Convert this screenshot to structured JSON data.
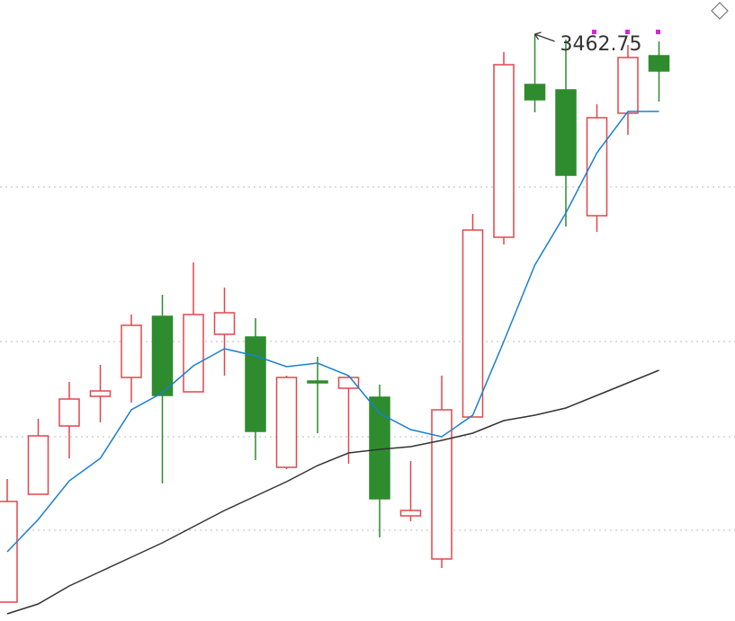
{
  "chart_data": {
    "type": "candlestick",
    "ylim": [
      3136.25,
      3481.75
    ],
    "grid_lines": [
      3377.75,
      3291.75,
      3238.75,
      3186.75
    ],
    "up_color": "#e0474c",
    "down_color": "#2e8b2e",
    "open": [
      3146.75,
      3206.75,
      3244.75,
      3261.25,
      3271.75,
      3305.75,
      3263.75,
      3295.75,
      3294.25,
      3221.75,
      3269.75,
      3265.75,
      3260.75,
      3194.75,
      3170.75,
      3249.75,
      3349.75,
      3434.75,
      3431.75,
      3361.75,
      3418.75,
      3450.75
    ],
    "high": [
      3215.25,
      3248.75,
      3269.25,
      3278.75,
      3306.75,
      3317.75,
      3335.75,
      3321.75,
      3304.75,
      3272.75,
      3283.25,
      3272.75,
      3267.75,
      3225.25,
      3272.75,
      3362.75,
      3452.75,
      3462.75,
      3459.75,
      3423.75,
      3456.75,
      3458.75
    ],
    "low": [
      3146.75,
      3206.75,
      3226.75,
      3246.75,
      3257.75,
      3212.75,
      3263.75,
      3272.75,
      3225.75,
      3220.75,
      3240.75,
      3223.75,
      3182.75,
      3191.75,
      3165.75,
      3249.75,
      3345.75,
      3419.25,
      3355.75,
      3352.75,
      3406.75,
      3425.25
    ],
    "close": [
      3202.75,
      3239.25,
      3259.75,
      3264.25,
      3300.75,
      3261.75,
      3306.75,
      3307.75,
      3241.75,
      3271.75,
      3268.75,
      3271.75,
      3204.25,
      3197.75,
      3253.75,
      3353.75,
      3445.75,
      3426.25,
      3384.25,
      3416.25,
      3449.75,
      3442.25
    ],
    "lines": [
      {
        "color": "#1a7fd0",
        "values": [
          3174.75,
          3192.75,
          3214.25,
          3226.75,
          3253.75,
          3263.25,
          3278.25,
          3287.75,
          3283.75,
          3277.75,
          3279.75,
          3272.75,
          3251.75,
          3242.75,
          3238.75,
          3250.75,
          3291.75,
          3334.25,
          3363.25,
          3396.75,
          3419.75,
          3419.75
        ]
      },
      {
        "color": "#333333",
        "values": [
          3140.25,
          3145.75,
          3155.75,
          3163.75,
          3171.75,
          3179.75,
          3188.75,
          3197.75,
          3205.75,
          3213.75,
          3222.75,
          3229.75,
          3231.75,
          3233.25,
          3236.75,
          3240.75,
          3247.75,
          3250.75,
          3254.75,
          3261.75,
          3268.75,
          3275.75
        ]
      }
    ],
    "annotation": {
      "value": 3462.75,
      "index": 17
    }
  }
}
